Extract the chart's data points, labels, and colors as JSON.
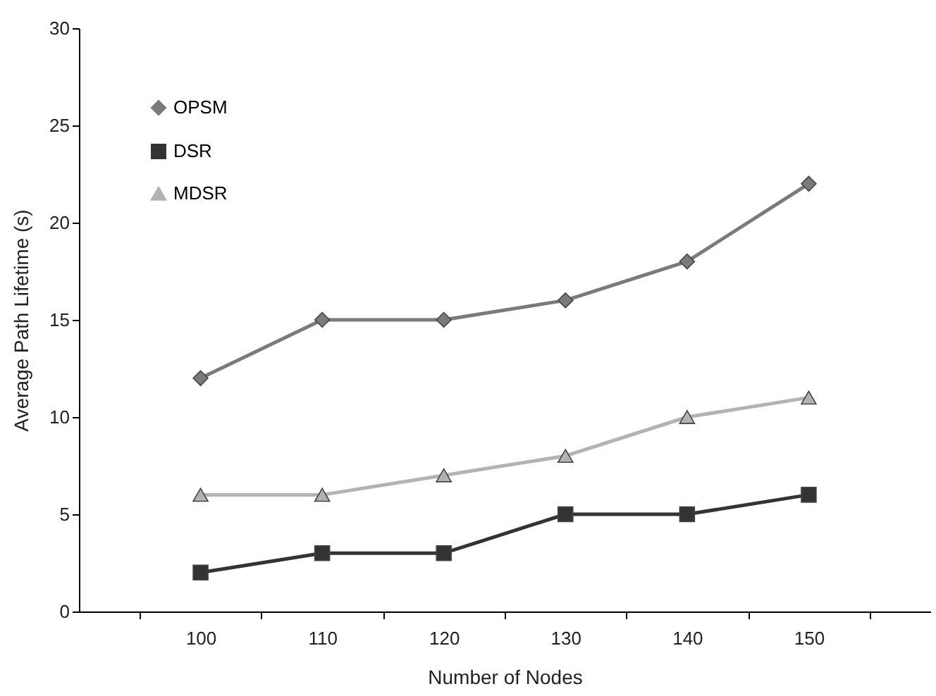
{
  "chart_data": {
    "type": "line",
    "xlabel": "Number of Nodes",
    "ylabel": "Average Path Lifetime (s)",
    "categories": [
      "100",
      "110",
      "120",
      "130",
      "140",
      "150"
    ],
    "series": [
      {
        "name": "OPSM",
        "color": "#7a7a7a",
        "marker": "diamond",
        "values": [
          12,
          15,
          15,
          16,
          18,
          22
        ]
      },
      {
        "name": "DSR",
        "color": "#333333",
        "marker": "square",
        "values": [
          2,
          3,
          3,
          5,
          5,
          6
        ]
      },
      {
        "name": "MDSR",
        "color": "#b3b3b3",
        "marker": "triangle",
        "values": [
          6,
          6,
          7,
          8,
          10,
          11
        ]
      }
    ],
    "ylim": [
      0,
      30
    ],
    "yticks": [
      0,
      5,
      10,
      15,
      20,
      25,
      30
    ],
    "grid": false,
    "legend": "top left",
    "line_style": "solid"
  }
}
